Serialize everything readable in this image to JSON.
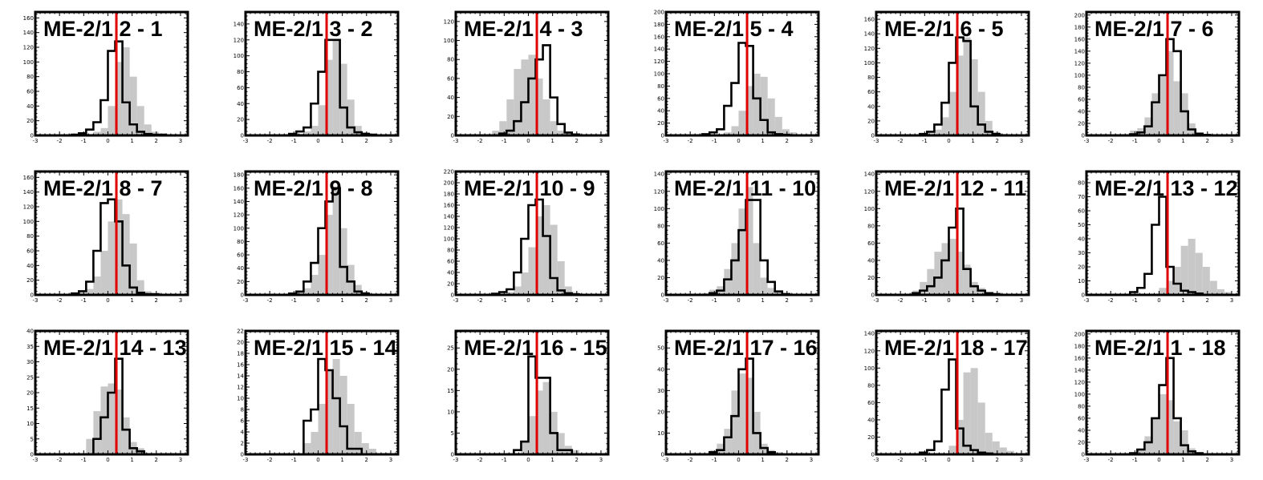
{
  "style": {
    "reference_fill": "#c8c8c8",
    "current_line": "#000000",
    "marker_line": "#e00000"
  },
  "chart_data": [
    {
      "type": "bar",
      "title": "ME-2/1 2 - 1",
      "xlim": [
        -3,
        3.3
      ],
      "bin_width": 0.3,
      "marker_x": 0.35,
      "xticks": [
        -3,
        -2,
        -1,
        0,
        1,
        2,
        3
      ],
      "yticks": [
        0,
        20,
        40,
        60,
        80,
        100,
        120,
        140,
        160
      ],
      "ylim": [
        0,
        168
      ],
      "series": [
        {
          "kind": "filled",
          "bin_start": -1.2,
          "values": [
            1,
            2,
            5,
            10,
            40,
            100,
            120,
            80,
            40,
            15,
            5,
            2,
            1
          ]
        },
        {
          "kind": "outline",
          "bin_start": -1.5,
          "values": [
            1,
            3,
            8,
            18,
            48,
            115,
            128,
            45,
            15,
            5,
            2,
            1,
            1
          ]
        }
      ]
    },
    {
      "type": "bar",
      "title": "ME-2/1 3 - 2",
      "xlim": [
        -3,
        3.3
      ],
      "bin_width": 0.3,
      "marker_x": 0.35,
      "xticks": [
        -3,
        -2,
        -1,
        0,
        1,
        2,
        3
      ],
      "yticks": [
        0,
        20,
        40,
        60,
        80,
        100,
        120,
        140
      ],
      "ylim": [
        0,
        155
      ],
      "series": [
        {
          "kind": "filled",
          "bin_start": -1.2,
          "values": [
            1,
            2,
            5,
            12,
            38,
            95,
            120,
            90,
            45,
            12,
            4,
            2,
            1
          ]
        },
        {
          "kind": "outline",
          "bin_start": -1.2,
          "values": [
            2,
            5,
            10,
            40,
            80,
            120,
            120,
            35,
            10,
            4,
            2,
            1
          ]
        }
      ]
    },
    {
      "type": "bar",
      "title": "ME-2/1 4 - 3",
      "xlim": [
        -3,
        3.3
      ],
      "bin_width": 0.3,
      "marker_x": 0.35,
      "xticks": [
        -3,
        -2,
        -1,
        0,
        1,
        2,
        3
      ],
      "yticks": [
        0,
        20,
        40,
        60,
        80,
        100,
        120
      ],
      "ylim": [
        0,
        130
      ],
      "series": [
        {
          "kind": "filled",
          "bin_start": -1.5,
          "values": [
            5,
            15,
            38,
            70,
            80,
            85,
            60,
            38,
            15,
            5,
            2
          ]
        },
        {
          "kind": "outline",
          "bin_start": -1.2,
          "values": [
            2,
            5,
            15,
            35,
            60,
            80,
            95,
            40,
            12,
            3,
            1
          ]
        }
      ]
    },
    {
      "type": "bar",
      "title": "ME-2/1 5 - 4",
      "xlim": [
        -3,
        3.3
      ],
      "bin_width": 0.3,
      "marker_x": 0.35,
      "xticks": [
        -3,
        -2,
        -1,
        0,
        1,
        2,
        3
      ],
      "yticks": [
        0,
        20,
        40,
        60,
        80,
        100,
        120,
        140,
        160,
        180,
        200
      ],
      "ylim": [
        0,
        200
      ],
      "series": [
        {
          "kind": "filled",
          "bin_start": -0.9,
          "values": [
            2,
            5,
            15,
            40,
            80,
            100,
            95,
            60,
            30,
            10,
            5
          ]
        },
        {
          "kind": "outline",
          "bin_start": -1.5,
          "values": [
            2,
            5,
            10,
            48,
            85,
            150,
            145,
            60,
            25,
            5,
            2,
            1
          ]
        }
      ]
    },
    {
      "type": "bar",
      "title": "ME-2/1 6 - 5",
      "xlim": [
        -3,
        3.3
      ],
      "bin_width": 0.3,
      "marker_x": 0.35,
      "xticks": [
        -3,
        -2,
        -1,
        0,
        1,
        2,
        3
      ],
      "yticks": [
        0,
        20,
        40,
        60,
        80,
        100,
        120,
        140,
        160
      ],
      "ylim": [
        0,
        170
      ],
      "series": [
        {
          "kind": "filled",
          "bin_start": -1.2,
          "values": [
            1,
            3,
            8,
            25,
            60,
            110,
            135,
            105,
            60,
            20,
            5,
            2
          ]
        },
        {
          "kind": "outline",
          "bin_start": -1.2,
          "values": [
            2,
            5,
            15,
            45,
            100,
            135,
            130,
            40,
            15,
            5,
            2
          ]
        }
      ]
    },
    {
      "type": "bar",
      "title": "ME-2/1 7 - 6",
      "xlim": [
        -3,
        3.3
      ],
      "bin_width": 0.3,
      "marker_x": 0.35,
      "xticks": [
        -3,
        -2,
        -1,
        0,
        1,
        2,
        3
      ],
      "yticks": [
        0,
        20,
        40,
        60,
        80,
        100,
        120,
        140,
        160,
        180,
        200
      ],
      "ylim": [
        0,
        205
      ],
      "series": [
        {
          "kind": "filled",
          "bin_start": -1.5,
          "values": [
            2,
            8,
            12,
            30,
            70,
            100,
            140,
            90,
            70,
            20,
            5
          ]
        },
        {
          "kind": "outline",
          "bin_start": -1.2,
          "values": [
            2,
            5,
            15,
            55,
            100,
            160,
            140,
            40,
            10,
            3,
            1
          ]
        }
      ]
    },
    {
      "type": "bar",
      "title": "ME-2/1 8 - 7",
      "xlim": [
        -3,
        3.3
      ],
      "bin_width": 0.3,
      "marker_x": 0.35,
      "xticks": [
        -3,
        -2,
        -1,
        0,
        1,
        2,
        3
      ],
      "yticks": [
        0,
        20,
        40,
        60,
        80,
        100,
        120,
        140,
        160
      ],
      "ylim": [
        0,
        168
      ],
      "series": [
        {
          "kind": "filled",
          "bin_start": -1.5,
          "values": [
            1,
            3,
            8,
            25,
            60,
            100,
            130,
            110,
            70,
            20,
            5,
            2
          ]
        },
        {
          "kind": "outline",
          "bin_start": -1.5,
          "values": [
            2,
            5,
            18,
            60,
            125,
            130,
            100,
            40,
            10,
            3,
            1,
            1
          ]
        }
      ]
    },
    {
      "type": "bar",
      "title": "ME-2/1 9 - 8",
      "xlim": [
        -3,
        3.3
      ],
      "bin_width": 0.3,
      "marker_x": 0.35,
      "xticks": [
        -3,
        -2,
        -1,
        0,
        1,
        2,
        3
      ],
      "yticks": [
        0,
        20,
        40,
        60,
        80,
        100,
        120,
        140,
        160,
        180
      ],
      "ylim": [
        0,
        185
      ],
      "series": [
        {
          "kind": "filled",
          "bin_start": -1.2,
          "values": [
            2,
            5,
            10,
            30,
            60,
            120,
            160,
            100,
            45,
            15,
            5,
            2
          ]
        },
        {
          "kind": "outline",
          "bin_start": -1.2,
          "values": [
            2,
            5,
            20,
            48,
            100,
            140,
            160,
            42,
            20,
            5,
            2
          ]
        }
      ]
    },
    {
      "type": "bar",
      "title": "ME-2/1 10 - 9",
      "xlim": [
        -3,
        3.3
      ],
      "bin_width": 0.3,
      "marker_x": 0.35,
      "xticks": [
        -3,
        -2,
        -1,
        0,
        1,
        2,
        3
      ],
      "yticks": [
        0,
        20,
        40,
        60,
        80,
        100,
        120,
        140,
        160,
        180,
        200,
        220
      ],
      "ylim": [
        0,
        220
      ],
      "series": [
        {
          "kind": "filled",
          "bin_start": -1.2,
          "values": [
            2,
            5,
            15,
            40,
            85,
            140,
            160,
            125,
            60,
            15,
            5,
            2
          ]
        },
        {
          "kind": "outline",
          "bin_start": -1.5,
          "values": [
            2,
            5,
            10,
            40,
            100,
            160,
            170,
            105,
            30,
            8,
            3,
            1
          ]
        }
      ]
    },
    {
      "type": "bar",
      "title": "ME-2/1 11 - 10",
      "xlim": [
        -3,
        3.3
      ],
      "bin_width": 0.3,
      "marker_x": 0.35,
      "xticks": [
        -3,
        -2,
        -1,
        0,
        1,
        2,
        3
      ],
      "yticks": [
        0,
        20,
        40,
        60,
        80,
        100,
        120,
        140
      ],
      "ylim": [
        0,
        143
      ],
      "series": [
        {
          "kind": "filled",
          "bin_start": -1.5,
          "values": [
            2,
            6,
            10,
            30,
            60,
            100,
            125,
            60,
            20,
            8,
            3
          ]
        },
        {
          "kind": "outline",
          "bin_start": -1.2,
          "values": [
            2,
            5,
            18,
            40,
            75,
            110,
            110,
            40,
            15,
            4,
            1
          ]
        }
      ]
    },
    {
      "type": "bar",
      "title": "ME-2/1 12 - 11",
      "xlim": [
        -3,
        3.3
      ],
      "bin_width": 0.3,
      "marker_x": 0.35,
      "xticks": [
        -3,
        -2,
        -1,
        0,
        1,
        2,
        3
      ],
      "yticks": [
        0,
        20,
        40,
        60,
        80,
        100,
        120,
        140
      ],
      "ylim": [
        0,
        143
      ],
      "series": [
        {
          "kind": "filled",
          "bin_start": -1.5,
          "values": [
            5,
            15,
            30,
            50,
            60,
            65,
            50,
            35,
            15,
            8,
            3
          ]
        },
        {
          "kind": "outline",
          "bin_start": -1.5,
          "values": [
            2,
            5,
            10,
            20,
            40,
            78,
            100,
            30,
            10,
            5,
            2,
            1
          ]
        }
      ]
    },
    {
      "type": "bar",
      "title": "ME-2/1 13 - 12",
      "xlim": [
        -3,
        3.3
      ],
      "bin_width": 0.3,
      "marker_x": 0.35,
      "xticks": [
        -3,
        -2,
        -1,
        0,
        1,
        2,
        3
      ],
      "yticks": [
        0,
        10,
        20,
        30,
        40,
        50,
        60,
        70,
        80
      ],
      "ylim": [
        0,
        88
      ],
      "series": [
        {
          "kind": "filled",
          "bin_start": 0,
          "values": [
            5,
            10,
            20,
            35,
            40,
            30,
            20,
            10,
            4,
            2
          ]
        },
        {
          "kind": "outline",
          "bin_start": -1.2,
          "values": [
            2,
            5,
            15,
            50,
            70,
            20,
            8,
            3,
            2,
            1
          ]
        }
      ]
    },
    {
      "type": "bar",
      "title": "ME-2/1 14 - 13",
      "xlim": [
        -3,
        3.3
      ],
      "bin_width": 0.3,
      "marker_x": 0.35,
      "xticks": [
        -3,
        -2,
        -1,
        0,
        1,
        2,
        3
      ],
      "yticks": [
        0,
        5,
        10,
        15,
        20,
        25,
        30,
        35,
        40
      ],
      "ylim": [
        0,
        40
      ],
      "series": [
        {
          "kind": "filled",
          "bin_start": -0.9,
          "values": [
            5,
            14,
            22,
            23,
            21,
            12,
            4,
            2
          ]
        },
        {
          "kind": "outline",
          "bin_start": -0.6,
          "values": [
            5,
            12,
            20,
            31,
            8,
            2,
            1
          ]
        }
      ]
    },
    {
      "type": "bar",
      "title": "ME-2/1 15 - 14",
      "xlim": [
        -3,
        3.3
      ],
      "bin_width": 0.3,
      "marker_x": 0.35,
      "xticks": [
        -3,
        -2,
        -1,
        0,
        1,
        2,
        3
      ],
      "yticks": [
        0,
        2,
        4,
        6,
        8,
        10,
        12,
        14,
        16,
        18,
        20,
        22
      ],
      "ylim": [
        0,
        22
      ],
      "series": [
        {
          "kind": "filled",
          "bin_start": -0.6,
          "values": [
            2,
            4,
            9,
            15,
            17,
            14,
            9,
            4,
            2,
            1
          ]
        },
        {
          "kind": "outline",
          "bin_start": -0.6,
          "values": [
            6,
            8,
            17,
            15,
            10,
            5,
            1,
            1
          ]
        }
      ]
    },
    {
      "type": "bar",
      "title": "ME-2/1 16 - 15",
      "xlim": [
        -3,
        3.3
      ],
      "bin_width": 0.3,
      "marker_x": 0.35,
      "xticks": [
        -3,
        -2,
        -1,
        0,
        1,
        2,
        3
      ],
      "yticks": [
        0,
        5,
        10,
        15,
        20,
        25
      ],
      "ylim": [
        0,
        29
      ],
      "series": [
        {
          "kind": "filled",
          "bin_start": -0.3,
          "values": [
            3,
            9,
            15,
            17,
            10,
            5,
            2,
            1
          ]
        },
        {
          "kind": "outline",
          "bin_start": -0.6,
          "values": [
            1,
            3,
            23,
            18,
            18,
            5,
            1,
            1
          ]
        }
      ]
    },
    {
      "type": "bar",
      "title": "ME-2/1 17 - 16",
      "xlim": [
        -3,
        3.3
      ],
      "bin_width": 0.3,
      "marker_x": 0.35,
      "xticks": [
        -3,
        -2,
        -1,
        0,
        1,
        2,
        3
      ],
      "yticks": [
        0,
        10,
        20,
        30,
        40,
        50
      ],
      "ylim": [
        0,
        58
      ],
      "series": [
        {
          "kind": "filled",
          "bin_start": -1.2,
          "values": [
            2,
            5,
            12,
            30,
            38,
            36,
            20,
            5,
            2,
            1
          ]
        },
        {
          "kind": "outline",
          "bin_start": -1.2,
          "values": [
            1,
            2,
            8,
            18,
            40,
            45,
            10,
            3,
            1
          ]
        }
      ]
    },
    {
      "type": "bar",
      "title": "ME-2/1 18 - 17",
      "xlim": [
        -3,
        3.3
      ],
      "bin_width": 0.3,
      "marker_x": 0.35,
      "xticks": [
        -3,
        -2,
        -1,
        0,
        1,
        2,
        3
      ],
      "yticks": [
        0,
        20,
        40,
        60,
        80,
        100,
        120,
        140
      ],
      "ylim": [
        0,
        143
      ],
      "series": [
        {
          "kind": "filled",
          "bin_start": 0,
          "values": [
            10,
            40,
            95,
            100,
            60,
            25,
            15,
            8,
            4
          ]
        },
        {
          "kind": "outline",
          "bin_start": -1.2,
          "values": [
            2,
            5,
            15,
            75,
            110,
            30,
            10,
            5,
            2,
            1
          ]
        }
      ]
    },
    {
      "type": "bar",
      "title": "ME-2/1 1 - 18",
      "xlim": [
        -3,
        3.3
      ],
      "bin_width": 0.3,
      "marker_x": 0.35,
      "xticks": [
        -3,
        -2,
        -1,
        0,
        1,
        2,
        3
      ],
      "yticks": [
        0,
        20,
        40,
        60,
        80,
        100,
        120,
        140,
        160,
        180,
        200
      ],
      "ylim": [
        0,
        205
      ],
      "series": [
        {
          "kind": "filled",
          "bin_start": -1.2,
          "values": [
            3,
            10,
            30,
            60,
            100,
            90,
            55,
            40,
            10,
            3
          ]
        },
        {
          "kind": "outline",
          "bin_start": -1.2,
          "values": [
            2,
            8,
            20,
            60,
            115,
            160,
            60,
            15,
            5,
            2
          ]
        }
      ]
    }
  ]
}
